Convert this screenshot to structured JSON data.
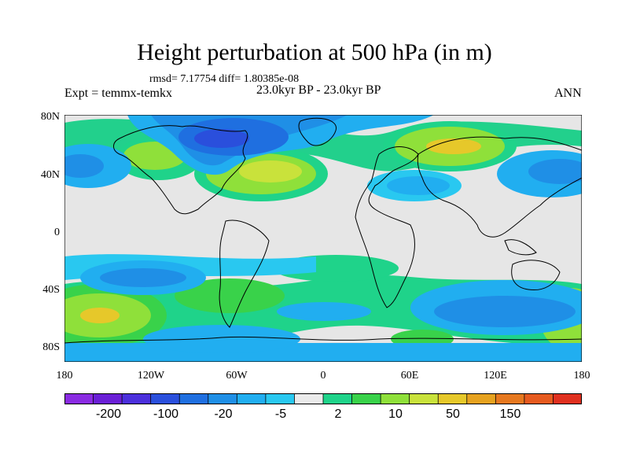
{
  "title": "Height perturbation at 500 hPa (in m)",
  "stats": "rmsd= 7.17754  diff= 1.80385e-08",
  "left_label": "Expt = temmx-temkx",
  "center_label": "23.0kyr BP - 23.0kyr BP",
  "right_label": "ANN",
  "lat_labels": [
    "80N",
    "40N",
    "0",
    "40S",
    "80S"
  ],
  "lon_labels": [
    "180",
    "120W",
    "60W",
    "0",
    "60E",
    "120E",
    "180"
  ],
  "colorbar": {
    "colors": [
      "#8a2be2",
      "#6a1fd6",
      "#4b2fdc",
      "#2a4fdc",
      "#1f6fe0",
      "#1f8fe6",
      "#21aef0",
      "#29c8f0",
      "#eaeaea",
      "#1fd38a",
      "#39d24a",
      "#8fe03a",
      "#c9e23b",
      "#e6c82a",
      "#e6a21f",
      "#e6781f",
      "#e65a1f",
      "#e0301f"
    ],
    "tick_labels": [
      "-200",
      "-100",
      "-20",
      "-5",
      "2",
      "10",
      "50",
      "150"
    ]
  }
}
